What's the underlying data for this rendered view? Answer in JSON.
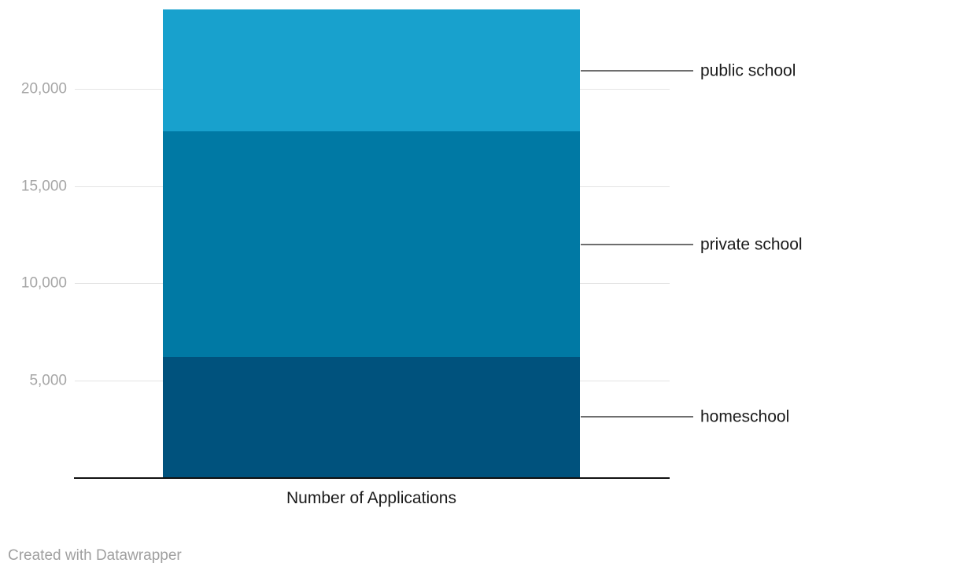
{
  "chart_data": {
    "type": "bar",
    "variant": "stacked-single-column",
    "title": "",
    "xlabel": "Number of Applications",
    "ylabel": "",
    "categories": [
      "Number of Applications"
    ],
    "series": [
      {
        "name": "homeschool",
        "values": [
          6200
        ],
        "color": "#00527d"
      },
      {
        "name": "private school",
        "values": [
          11600
        ],
        "color": "#0079a4"
      },
      {
        "name": "public school",
        "values": [
          6300
        ],
        "color": "#18a1cd"
      }
    ],
    "stack_order_bottom_to_top": [
      "homeschool",
      "private school",
      "public school"
    ],
    "total": 24100,
    "yticks": [
      {
        "value": 5000,
        "label": "5,000"
      },
      {
        "value": 10000,
        "label": "10,000"
      },
      {
        "value": 15000,
        "label": "15,000"
      },
      {
        "value": 20000,
        "label": "20,000"
      }
    ],
    "ylim": [
      0,
      24100
    ],
    "grid": true,
    "legend_position": "right-connector-labels",
    "footer": "Created with Datawrapper"
  },
  "colors": {
    "background": "#ffffff",
    "axis": "#111111",
    "gridline": "#e4e4e4",
    "tick_label": "#a6a6a6",
    "segment_label": "#1a1a1a",
    "connector": "#6e6e6e"
  }
}
